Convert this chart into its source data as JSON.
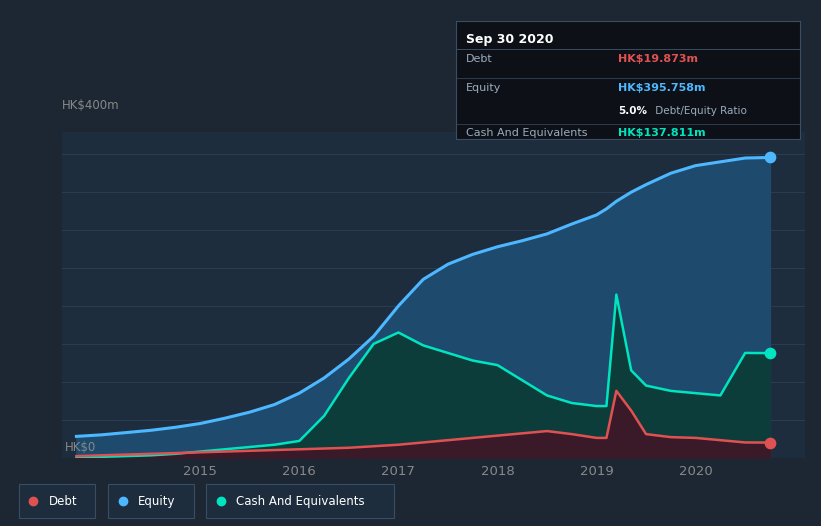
{
  "bg_color": "#1c2733",
  "plot_bg_color": "#1e2d3e",
  "grid_color": "#2a3d52",
  "title_box_bg": "#0d1117",
  "title_box_border": "#3a4d62",
  "ylabel_top": "HK$400m",
  "ylabel_bottom": "HK$0",
  "x_ticks": [
    2015,
    2016,
    2017,
    2018,
    2019,
    2020
  ],
  "tooltip": {
    "date": "Sep 30 2020",
    "debt_label": "Debt",
    "debt_value": "HK$19.873m",
    "debt_color": "#e05252",
    "equity_label": "Equity",
    "equity_value": "HK$395.758m",
    "equity_color": "#4db8ff",
    "ratio_bold": "5.0%",
    "ratio_rest": " Debt/Equity Ratio",
    "cash_label": "Cash And Equivalents",
    "cash_value": "HK$137.811m",
    "cash_color": "#00e5c0"
  },
  "equity_color": "#4db8ff",
  "equity_fill": "#1e4a6e",
  "debt_color": "#e05252",
  "debt_fill": "#3a1a28",
  "cash_color": "#00e5c0",
  "cash_fill": "#0d3d3a",
  "legend_bg": "#1e2d3e",
  "legend_border": "#3a4d62",
  "years": [
    2013.75,
    2014.0,
    2014.25,
    2014.5,
    2014.75,
    2015.0,
    2015.25,
    2015.5,
    2015.75,
    2016.0,
    2016.25,
    2016.5,
    2016.75,
    2017.0,
    2017.25,
    2017.5,
    2017.75,
    2018.0,
    2018.25,
    2018.5,
    2018.75,
    2019.0,
    2019.1,
    2019.2,
    2019.35,
    2019.5,
    2019.75,
    2020.0,
    2020.25,
    2020.5,
    2020.75
  ],
  "equity": [
    28,
    30,
    33,
    36,
    40,
    45,
    52,
    60,
    70,
    85,
    105,
    130,
    160,
    200,
    235,
    255,
    268,
    278,
    286,
    295,
    308,
    320,
    328,
    338,
    350,
    360,
    375,
    385,
    390,
    395,
    395.758
  ],
  "cash": [
    0,
    1,
    2,
    3,
    5,
    8,
    11,
    14,
    17,
    22,
    55,
    105,
    150,
    165,
    148,
    138,
    128,
    122,
    102,
    82,
    72,
    68,
    68,
    215,
    115,
    95,
    88,
    85,
    82,
    138,
    137.811
  ],
  "debt": [
    2,
    3,
    4,
    5,
    6,
    7,
    8,
    9,
    10,
    11,
    12,
    13,
    15,
    17,
    20,
    23,
    26,
    29,
    32,
    35,
    31,
    26,
    26,
    88,
    62,
    31,
    27,
    26,
    23,
    20,
    19.873
  ],
  "ylim": [
    0,
    430
  ],
  "xlim": [
    2013.6,
    2021.1
  ]
}
